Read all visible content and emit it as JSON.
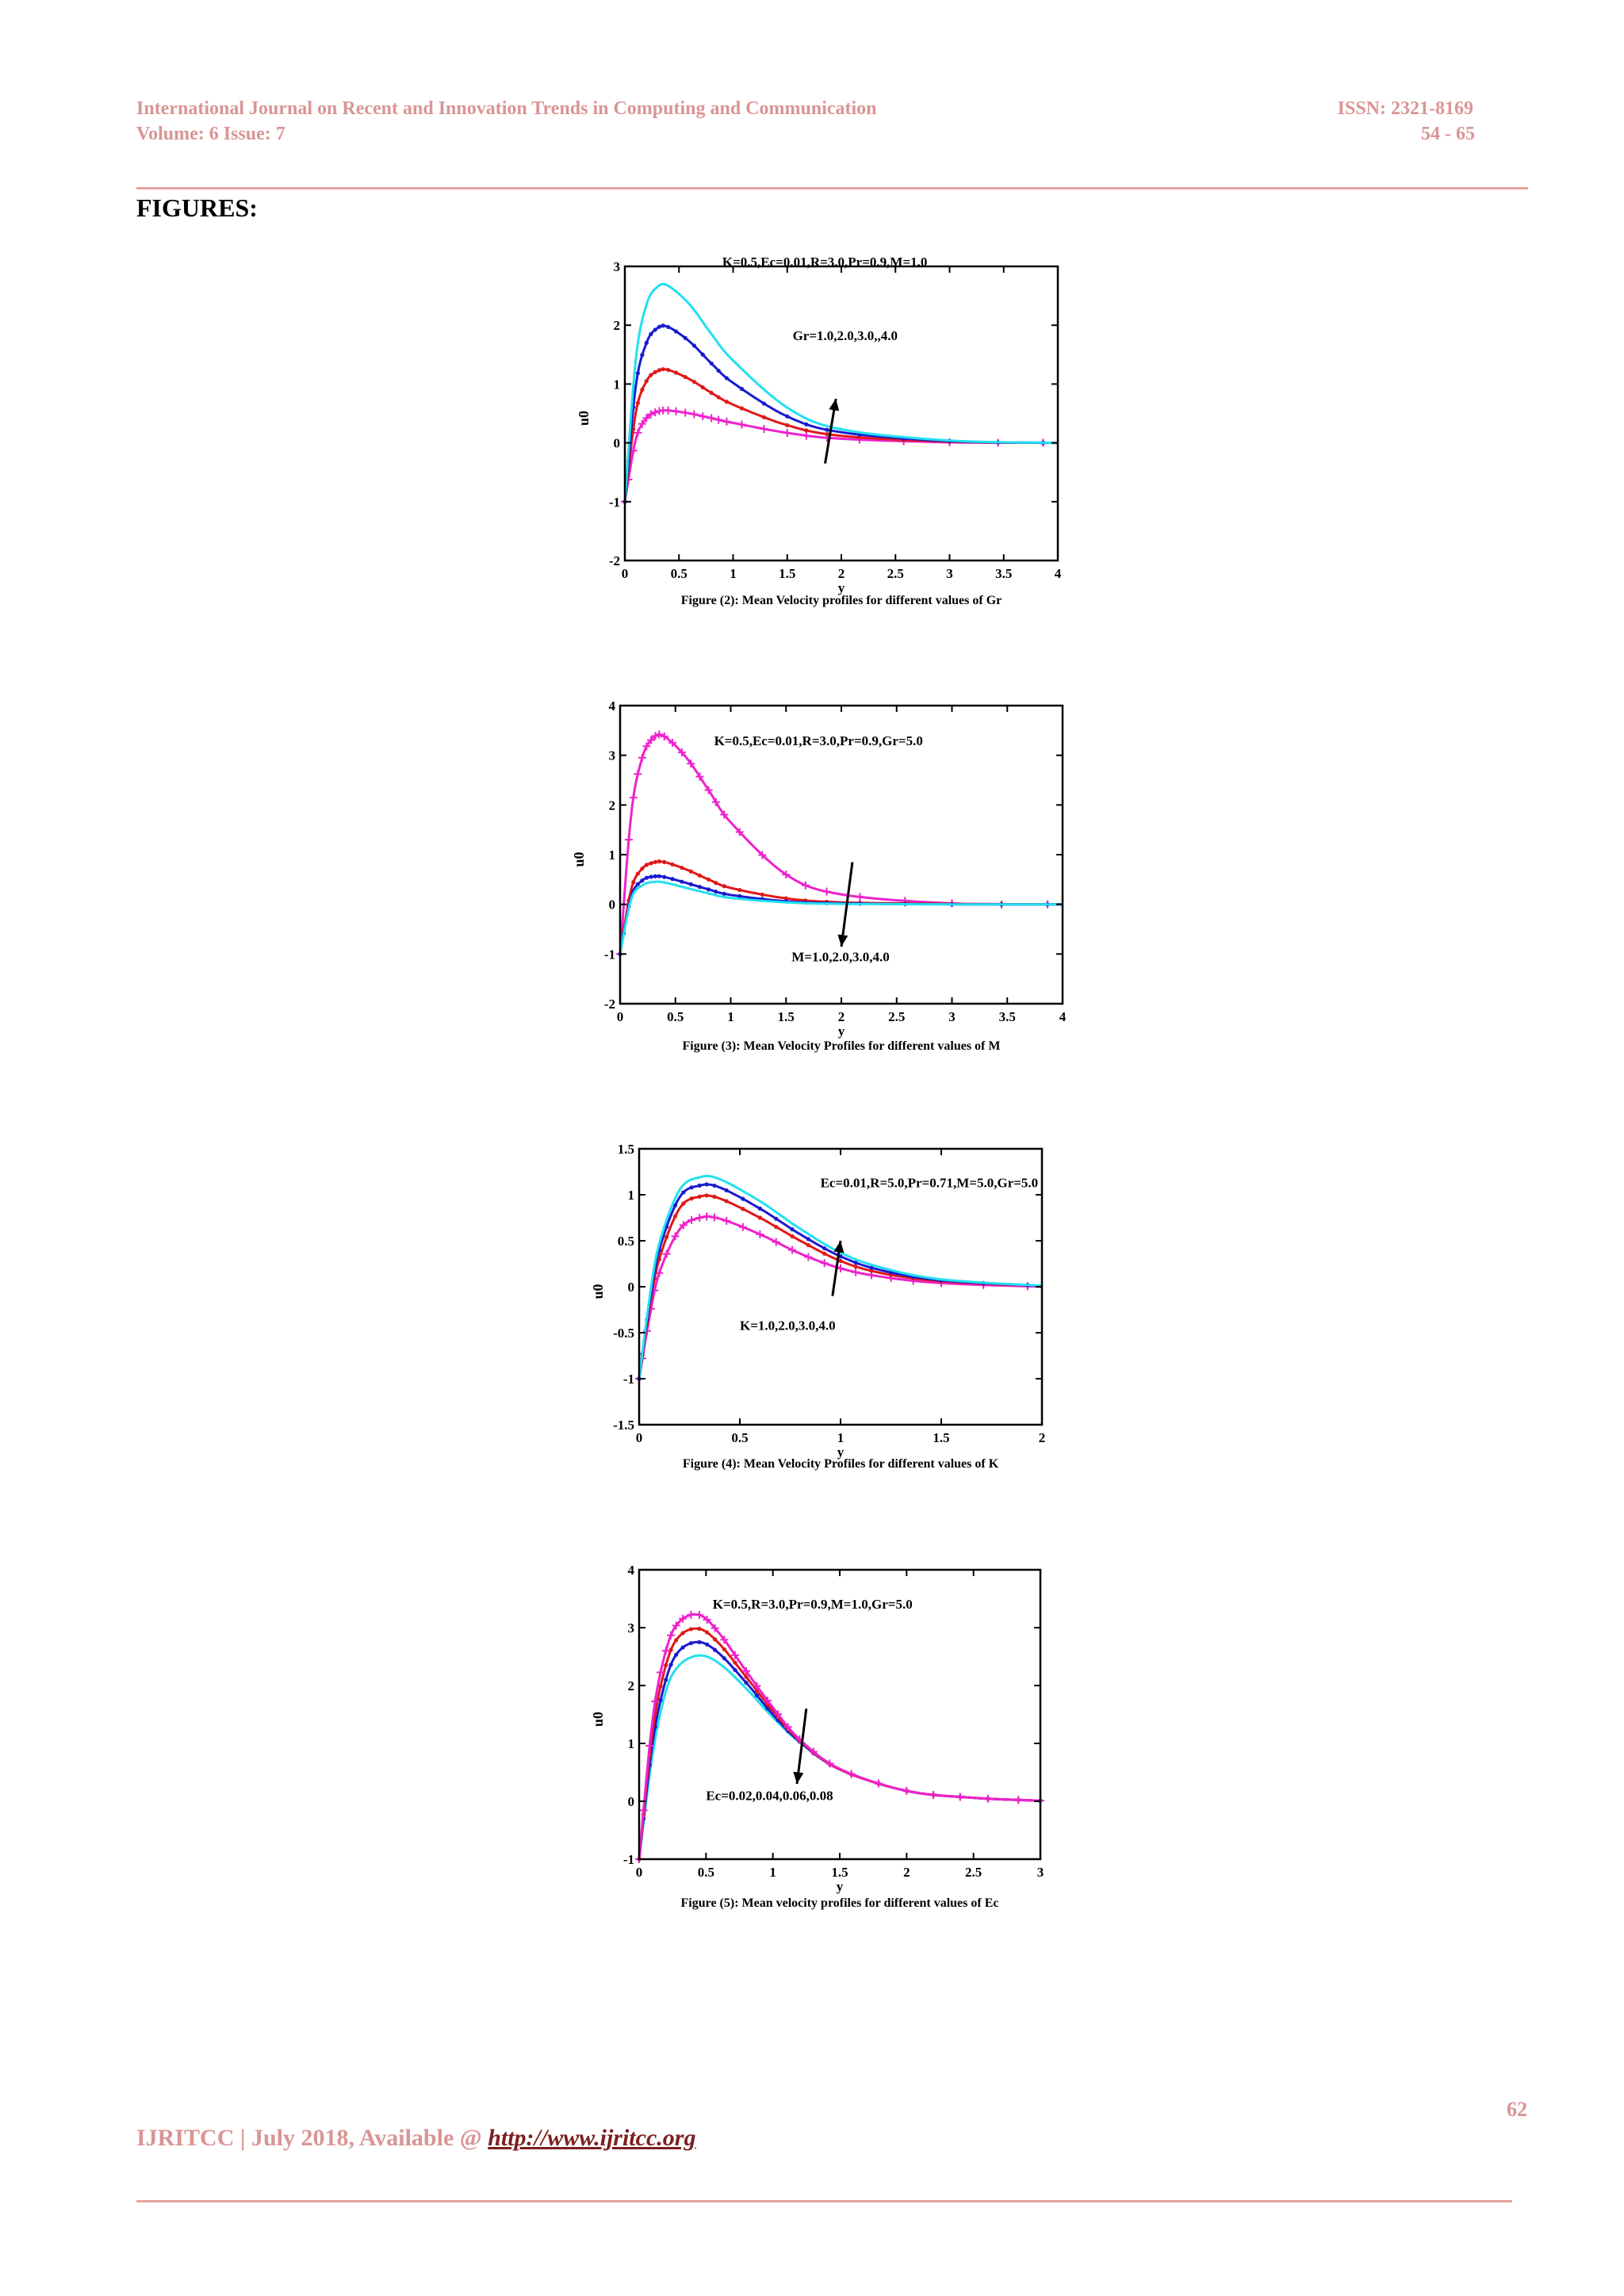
{
  "header": {
    "journal": "International Journal on Recent and Innovation Trends in Computing and Communication",
    "volume": "Volume: 6 Issue: 7",
    "issn": "ISSN: 2321-8169",
    "pages": "54 - 65"
  },
  "section_title": "FIGURES:",
  "footer": {
    "text": "IJRITCC | July 2018, Available @ ",
    "link": "http://www.ijritcc.org",
    "page_number": "62"
  },
  "colors": {
    "cyan": "#22e0f0",
    "blue": "#1a1ad0",
    "red": "#e01818",
    "magenta": "#ee22cc",
    "header": "#d99594"
  },
  "chart_data": [
    {
      "type": "line",
      "caption": "Figure (2): Mean Velocity profiles for different values of Gr",
      "xlabel": "y",
      "ylabel": "u0",
      "xlim": [
        0,
        4
      ],
      "ylim": [
        -2,
        3
      ],
      "xticks": [
        "0",
        "0.5",
        "1",
        "1.5",
        "2",
        "2.5",
        "3",
        "3.5",
        "4"
      ],
      "yticks": [
        "-2",
        "-1",
        "0",
        "1",
        "2",
        "3"
      ],
      "annotation_params": "K=0.5,Ec=0.01,R=3.0,Pr=0.9,M=1.0",
      "annotation_arrow": "Gr=1.0,2.0,3.0,,4.0",
      "series": [
        {
          "color": "magenta",
          "marker": "plus",
          "x": [
            0,
            0.1,
            0.2,
            0.3,
            0.4,
            0.6,
            0.8,
            1.0,
            1.5,
            2.0,
            3.0,
            4.0
          ],
          "y": [
            -1,
            0.05,
            0.42,
            0.53,
            0.55,
            0.5,
            0.42,
            0.34,
            0.17,
            0.07,
            0.01,
            0
          ]
        },
        {
          "color": "red",
          "marker": "dot",
          "x": [
            0,
            0.1,
            0.2,
            0.3,
            0.4,
            0.6,
            0.8,
            1.0,
            1.5,
            2.0,
            3.0,
            4.0
          ],
          "y": [
            -1,
            0.5,
            1.05,
            1.22,
            1.24,
            1.08,
            0.85,
            0.65,
            0.3,
            0.12,
            0.02,
            0
          ]
        },
        {
          "color": "blue",
          "marker": "dot",
          "x": [
            0,
            0.1,
            0.2,
            0.3,
            0.4,
            0.6,
            0.8,
            1.0,
            1.5,
            2.0,
            3.0,
            4.0
          ],
          "y": [
            -1,
            0.95,
            1.7,
            1.95,
            1.97,
            1.72,
            1.35,
            1.02,
            0.45,
            0.18,
            0.03,
            0
          ]
        },
        {
          "color": "cyan",
          "marker": "none",
          "x": [
            0,
            0.1,
            0.2,
            0.3,
            0.4,
            0.6,
            0.8,
            1.0,
            1.5,
            2.0,
            3.0,
            4.0
          ],
          "y": [
            -1,
            1.4,
            2.35,
            2.65,
            2.67,
            2.35,
            1.85,
            1.4,
            0.6,
            0.23,
            0.04,
            0
          ]
        }
      ]
    },
    {
      "type": "line",
      "caption": "Figure (3): Mean Velocity Profiles for different values of M",
      "xlabel": "y",
      "ylabel": "u0",
      "xlim": [
        0,
        4
      ],
      "ylim": [
        -2,
        4
      ],
      "xticks": [
        "0",
        "0.5",
        "1",
        "1.5",
        "2",
        "2.5",
        "3",
        "3.5",
        "4"
      ],
      "yticks": [
        "-2",
        "-1",
        "0",
        "1",
        "2",
        "3",
        "4"
      ],
      "annotation_params": "K=0.5,Ec=0.01,R=3.0,Pr=0.9,Gr=5.0",
      "annotation_arrow": "M=1.0,2.0,3.0,4.0",
      "series": [
        {
          "color": "magenta",
          "marker": "plus",
          "x": [
            0,
            0.1,
            0.2,
            0.3,
            0.4,
            0.6,
            0.8,
            1.0,
            1.5,
            2.0,
            3.0,
            4.0
          ],
          "y": [
            -1,
            1.8,
            2.95,
            3.35,
            3.38,
            2.95,
            2.3,
            1.65,
            0.6,
            0.2,
            0.02,
            0
          ]
        },
        {
          "color": "red",
          "marker": "dot",
          "x": [
            0,
            0.1,
            0.2,
            0.3,
            0.4,
            0.6,
            0.8,
            1.0,
            1.5,
            2.0,
            3.0,
            4.0
          ],
          "y": [
            -1,
            0.3,
            0.72,
            0.84,
            0.85,
            0.7,
            0.5,
            0.33,
            0.12,
            0.04,
            0.01,
            0
          ]
        },
        {
          "color": "blue",
          "marker": "dot",
          "x": [
            0,
            0.1,
            0.2,
            0.3,
            0.4,
            0.6,
            0.8,
            1.0,
            1.5,
            2.0,
            3.0,
            4.0
          ],
          "y": [
            -1,
            0.15,
            0.48,
            0.56,
            0.55,
            0.43,
            0.3,
            0.19,
            0.06,
            0.02,
            0,
            0
          ]
        },
        {
          "color": "cyan",
          "marker": "none",
          "x": [
            0,
            0.1,
            0.2,
            0.3,
            0.4,
            0.6,
            0.8,
            1.0,
            1.5,
            2.0,
            3.0,
            4.0
          ],
          "y": [
            -1,
            0.1,
            0.38,
            0.45,
            0.44,
            0.33,
            0.22,
            0.13,
            0.04,
            0.01,
            0,
            0
          ]
        }
      ]
    },
    {
      "type": "line",
      "caption": "Figure (4): Mean Velocity Profiles for different values of K",
      "xlabel": "y",
      "ylabel": "u0",
      "xlim": [
        0,
        2
      ],
      "ylim": [
        -1.5,
        1.5
      ],
      "xticks": [
        "0",
        "0.5",
        "1",
        "1.5",
        "2"
      ],
      "yticks": [
        "-1.5",
        "-1",
        "-0.5",
        "0",
        "0.5",
        "1",
        "1.5"
      ],
      "annotation_params": "Ec=0.01,R=5.0,Pr=0.71,M=5.0,Gr=5.0",
      "annotation_arrow": "K=1.0,2.0,3.0,4.0",
      "series": [
        {
          "color": "magenta",
          "marker": "plus",
          "x": [
            0,
            0.05,
            0.1,
            0.2,
            0.3,
            0.4,
            0.6,
            0.8,
            1.0,
            1.2,
            1.5,
            2.0
          ],
          "y": [
            -1,
            -0.35,
            0.15,
            0.62,
            0.75,
            0.74,
            0.57,
            0.36,
            0.2,
            0.11,
            0.04,
            0
          ]
        },
        {
          "color": "red",
          "marker": "dot",
          "x": [
            0,
            0.05,
            0.1,
            0.2,
            0.3,
            0.4,
            0.6,
            0.8,
            1.0,
            1.2,
            1.5,
            2.0
          ],
          "y": [
            -1,
            -0.25,
            0.3,
            0.85,
            0.98,
            0.96,
            0.75,
            0.5,
            0.28,
            0.15,
            0.06,
            0.01
          ]
        },
        {
          "color": "blue",
          "marker": "dot",
          "x": [
            0,
            0.05,
            0.1,
            0.2,
            0.3,
            0.4,
            0.6,
            0.8,
            1.0,
            1.2,
            1.5,
            2.0
          ],
          "y": [
            -1,
            -0.2,
            0.4,
            0.97,
            1.1,
            1.08,
            0.85,
            0.57,
            0.33,
            0.18,
            0.07,
            0.01
          ]
        },
        {
          "color": "cyan",
          "marker": "none",
          "x": [
            0,
            0.05,
            0.1,
            0.2,
            0.3,
            0.4,
            0.6,
            0.8,
            1.0,
            1.2,
            1.5,
            2.0
          ],
          "y": [
            -1,
            -0.15,
            0.47,
            1.05,
            1.19,
            1.17,
            0.93,
            0.63,
            0.37,
            0.21,
            0.08,
            0.01
          ]
        }
      ]
    },
    {
      "type": "line",
      "caption": "Figure (5): Mean velocity profiles for different values of Ec",
      "xlabel": "y",
      "ylabel": "u0",
      "xlim": [
        0,
        3
      ],
      "ylim": [
        -1,
        4
      ],
      "xticks": [
        "0",
        "0.5",
        "1",
        "1.5",
        "2",
        "2.5",
        "3"
      ],
      "yticks": [
        "-1",
        "0",
        "1",
        "2",
        "3",
        "4"
      ],
      "annotation_params": "K=0.5,R=3.0,Pr=0.9,M=1.0,Gr=5.0",
      "annotation_arrow": "Ec=0.02,0.04,0.06,0.08",
      "series": [
        {
          "color": "cyan",
          "marker": "none",
          "x": [
            0,
            0.1,
            0.2,
            0.3,
            0.45,
            0.6,
            0.8,
            1.0,
            1.2,
            1.5,
            2.0,
            2.5,
            3.0
          ],
          "y": [
            -1,
            0.8,
            1.9,
            2.35,
            2.52,
            2.38,
            1.95,
            1.45,
            1.02,
            0.55,
            0.18,
            0.06,
            0.01
          ]
        },
        {
          "color": "blue",
          "marker": "dot",
          "x": [
            0,
            0.1,
            0.2,
            0.3,
            0.45,
            0.6,
            0.8,
            1.0,
            1.2,
            1.5,
            2.0,
            2.5,
            3.0
          ],
          "y": [
            -1,
            1.0,
            2.1,
            2.6,
            2.75,
            2.55,
            2.05,
            1.5,
            1.03,
            0.55,
            0.18,
            0.06,
            0.01
          ]
        },
        {
          "color": "red",
          "marker": "dot",
          "x": [
            0,
            0.1,
            0.2,
            0.3,
            0.45,
            0.6,
            0.8,
            1.0,
            1.2,
            1.5,
            2.0,
            2.5,
            3.0
          ],
          "y": [
            -1,
            1.2,
            2.35,
            2.85,
            2.98,
            2.72,
            2.15,
            1.56,
            1.05,
            0.55,
            0.18,
            0.06,
            0.01
          ]
        },
        {
          "color": "magenta",
          "marker": "plus",
          "x": [
            0,
            0.1,
            0.2,
            0.3,
            0.45,
            0.6,
            0.8,
            1.0,
            1.2,
            1.5,
            2.0,
            2.5,
            3.0
          ],
          "y": [
            -1,
            1.4,
            2.6,
            3.1,
            3.22,
            2.9,
            2.25,
            1.62,
            1.07,
            0.56,
            0.18,
            0.06,
            0.01
          ]
        }
      ]
    }
  ]
}
